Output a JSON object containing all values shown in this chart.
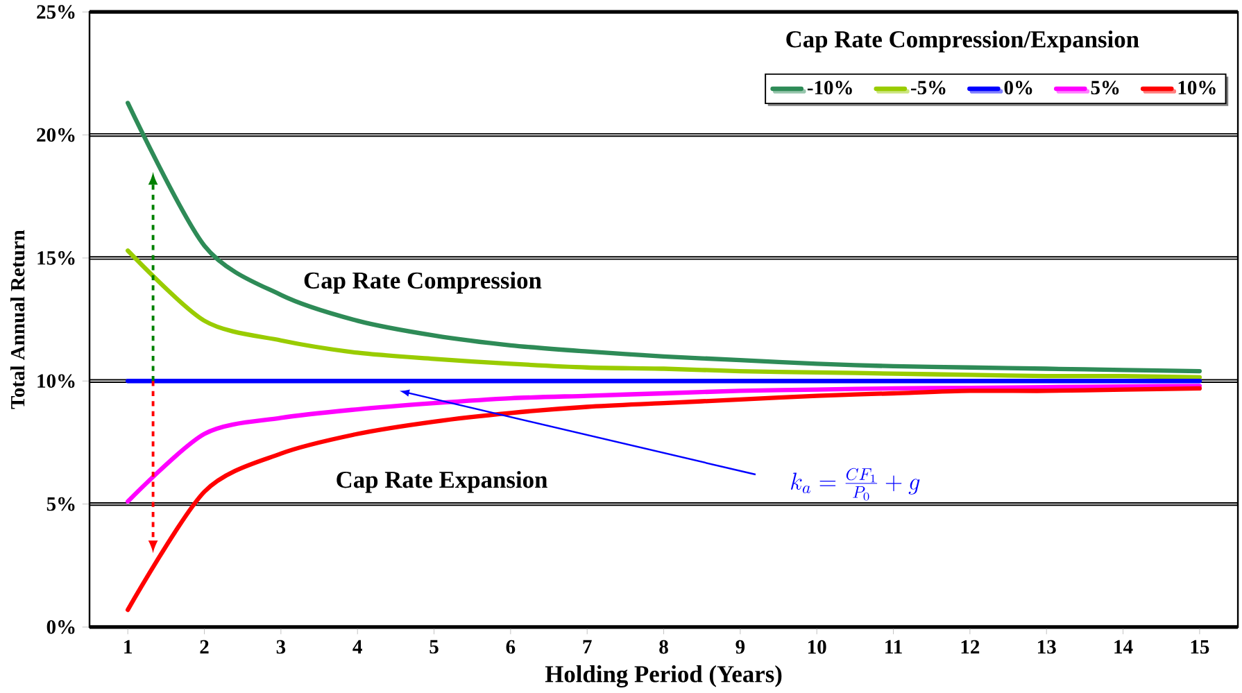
{
  "chart_data": {
    "type": "line",
    "xlabel": "Holding Period (Years)",
    "ylabel": "Total Annual Return",
    "legend_title": "Cap Rate Compression/Expansion",
    "legend": "top right",
    "grid": "y",
    "line_style": "solid",
    "marker": "none",
    "categories": [
      "1",
      "2",
      "3",
      "4",
      "5",
      "6",
      "7",
      "8",
      "9",
      "10",
      "11",
      "12",
      "13",
      "14",
      "15"
    ],
    "ylim": [
      0,
      25
    ],
    "yticks": [
      {
        "value": 0,
        "label": "0%"
      },
      {
        "value": 5,
        "label": "5%"
      },
      {
        "value": 10,
        "label": "10%"
      },
      {
        "value": 15,
        "label": "15%"
      },
      {
        "value": 20,
        "label": "20%"
      },
      {
        "value": 25,
        "label": "25%"
      }
    ],
    "series": [
      {
        "name": "-10%",
        "color": "#2e8b57",
        "values": [
          21.3,
          15.5,
          13.5,
          12.45,
          11.85,
          11.45,
          11.2,
          11.0,
          10.85,
          10.7,
          10.6,
          10.55,
          10.5,
          10.45,
          10.4
        ]
      },
      {
        "name": "-5%",
        "color": "#99cc00",
        "values": [
          15.3,
          12.45,
          11.65,
          11.15,
          10.9,
          10.7,
          10.55,
          10.5,
          10.4,
          10.35,
          10.3,
          10.25,
          10.2,
          10.2,
          10.15
        ]
      },
      {
        "name": "0%",
        "color": "#0000ff",
        "values": [
          10,
          10,
          10,
          10,
          10,
          10,
          10,
          10,
          10,
          10,
          10,
          10,
          10,
          10,
          10
        ]
      },
      {
        "name": "5%",
        "color": "#ff00ff",
        "values": [
          5.1,
          7.85,
          8.5,
          8.85,
          9.1,
          9.3,
          9.4,
          9.5,
          9.6,
          9.65,
          9.7,
          9.72,
          9.75,
          9.78,
          9.8
        ]
      },
      {
        "name": "10%",
        "color": "#ff0000",
        "values": [
          0.7,
          5.5,
          7.05,
          7.85,
          8.35,
          8.7,
          8.95,
          9.1,
          9.25,
          9.4,
          9.5,
          9.6,
          9.6,
          9.65,
          9.7
        ]
      }
    ],
    "annotations": [
      "Cap Rate Compression",
      "Cap Rate Expansion",
      "k_a = \\frac{CF_1}{P_0} + g"
    ]
  }
}
